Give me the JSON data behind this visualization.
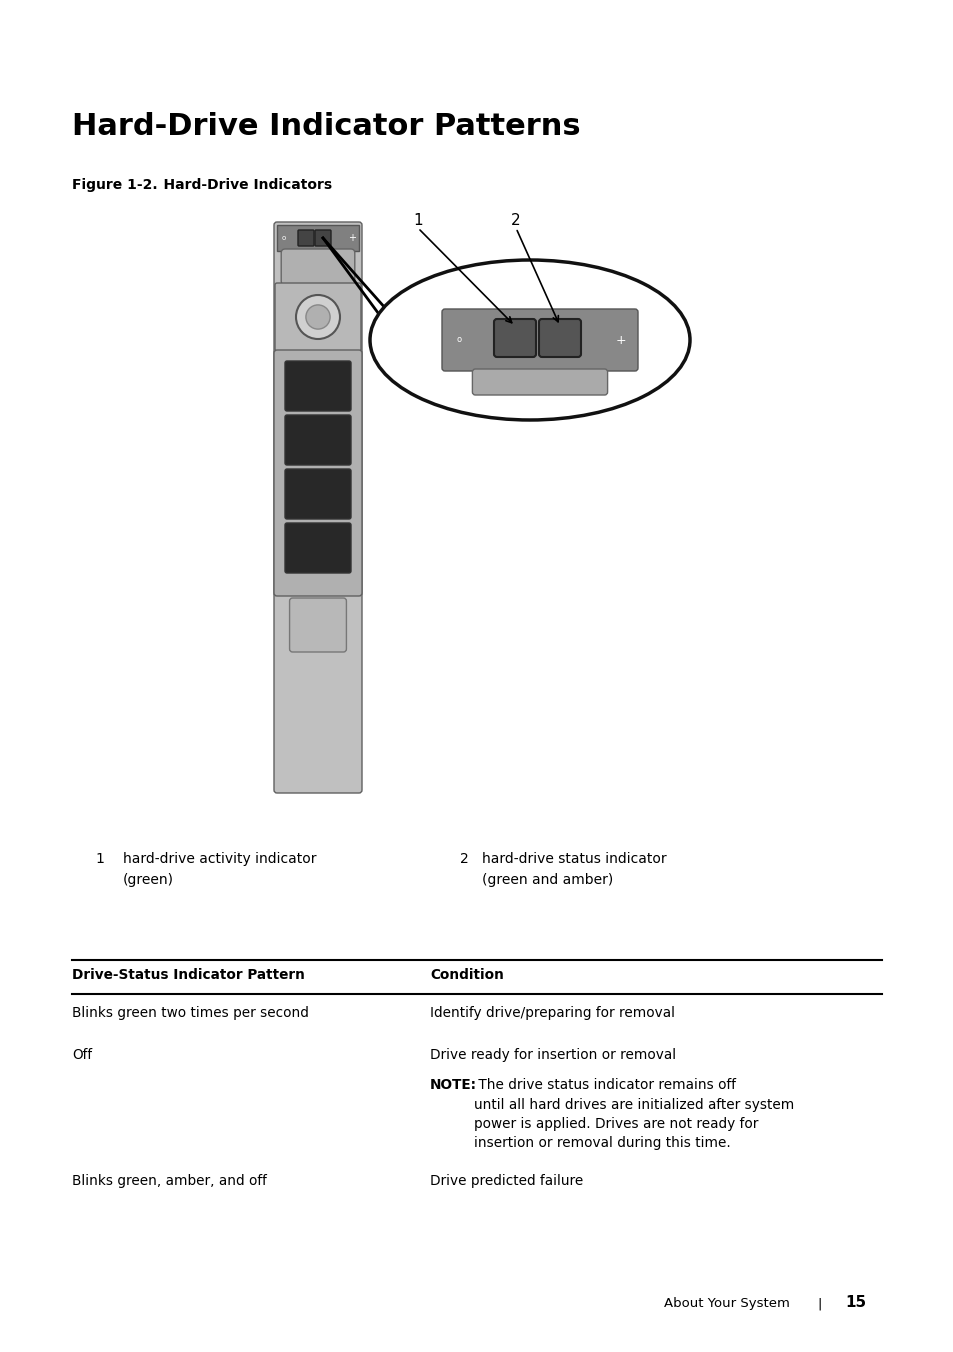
{
  "title": "Hard-Drive Indicator Patterns",
  "fig_label": "Figure 1-2.",
  "fig_title": "    Hard-Drive Indicators",
  "bg_color": "#ffffff",
  "item1_num": "1",
  "item1_label": "hard-drive activity indicator\n(green)",
  "item2_num": "2",
  "item2_label": "hard-drive status indicator\n(green and amber)",
  "table_header_col1": "Drive-Status Indicator Pattern",
  "table_header_col2": "Condition",
  "table_rows": [
    {
      "col1": "Blinks green two times per second",
      "col2": "Identify drive/preparing for removal"
    },
    {
      "col1": "Off",
      "col2": "Drive ready for insertion or removal",
      "note_bold": "NOTE:",
      "note_rest": " The drive status indicator remains off\nuntil all hard drives are initialized after system\npower is applied. Drives are not ready for\ninsertion or removal during this time."
    },
    {
      "col1": "Blinks green, amber, and off",
      "col2": "Drive predicted failure"
    }
  ],
  "footer_text": "About Your System",
  "footer_sep": "|",
  "footer_page": "15"
}
